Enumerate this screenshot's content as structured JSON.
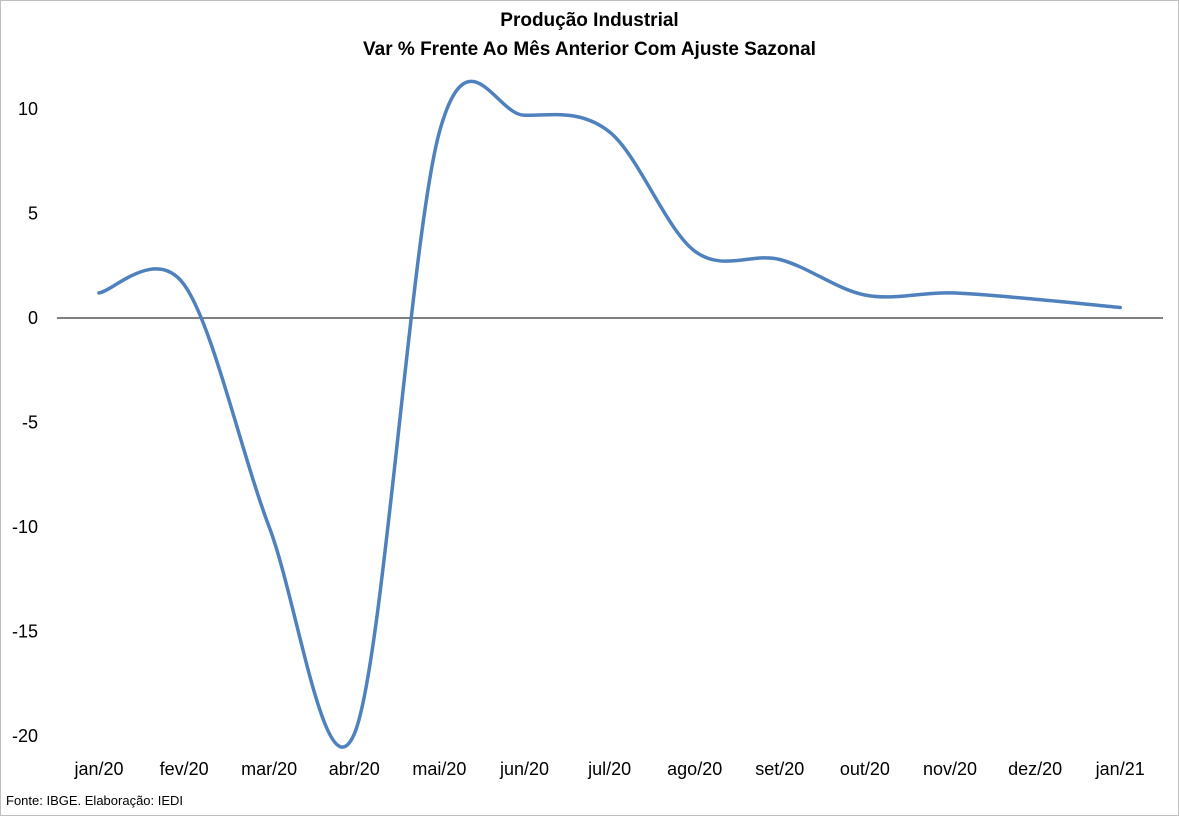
{
  "chart_data": {
    "type": "line",
    "title": "Produção Industrial",
    "subtitle": "Var % Frente Ao Mês Anterior Com Ajuste Sazonal",
    "xlabel": "",
    "ylabel": "",
    "categories": [
      "jan/20",
      "fev/20",
      "mar/20",
      "abr/20",
      "mai/20",
      "jun/20",
      "jul/20",
      "ago/20",
      "set/20",
      "out/20",
      "nov/20",
      "dez/20",
      "jan/21"
    ],
    "x_ticks": [
      "jan/20",
      "fev/20",
      "mar/20",
      "abr/20",
      "mai/20",
      "jun/20",
      "jul/20",
      "ago/20",
      "set/20",
      "out/20",
      "nov/20",
      "dez/20",
      "jan/21"
    ],
    "series": [
      {
        "name": "",
        "values": [
          1.2,
          1.6,
          -10.0,
          -19.9,
          8.9,
          9.7,
          8.9,
          3.2,
          2.8,
          1.1,
          1.2,
          0.9,
          0.5
        ],
        "color": "#4f81bd"
      }
    ],
    "ylim": [
      -20,
      10
    ],
    "y_ticks": [
      10,
      5,
      0,
      -5,
      -10,
      -15,
      -20
    ],
    "zero_line": true,
    "grid": false,
    "legend": "none"
  },
  "source_note": "Fonte: IBGE. Elaboração: IEDI"
}
